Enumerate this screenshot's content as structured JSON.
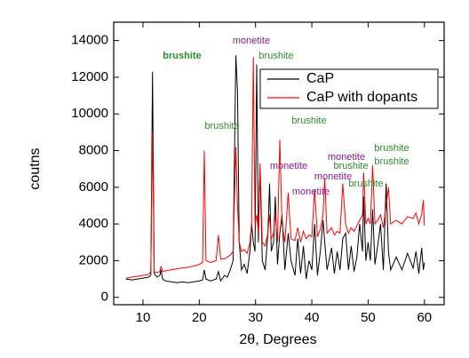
{
  "chart_data": {
    "type": "line",
    "xlabel": "2θ, Degrees",
    "ylabel": "coutns",
    "xlim": [
      4.8,
      63.5
    ],
    "ylim": [
      -400,
      15000
    ],
    "xticks": [
      10,
      20,
      30,
      40,
      50,
      60
    ],
    "yticks": [
      0,
      2000,
      4000,
      6000,
      8000,
      10000,
      12000,
      14000
    ],
    "legend": "upper right",
    "x": [
      7,
      8,
      9,
      10,
      11,
      11.4,
      11.7,
      12,
      12.5,
      13,
      13.2,
      13.5,
      14,
      15,
      16,
      17,
      18,
      19,
      20,
      20.6,
      20.9,
      21.2,
      22,
      23,
      23.4,
      23.8,
      24.5,
      25,
      25.5,
      26,
      26.5,
      26.8,
      27.1,
      27.5,
      28,
      28.5,
      29,
      29.3,
      29.6,
      29.9,
      30.2,
      30.5,
      30.8,
      31.2,
      31.7,
      32.2,
      32.5,
      32.8,
      33.2,
      33.5,
      33.9,
      34.3,
      34.7,
      35.2,
      35.8,
      36.3,
      37,
      37.5,
      38,
      38.5,
      39,
      39.5,
      40,
      40.5,
      41,
      41.5,
      42,
      42.3,
      42.7,
      43.5,
      44,
      44.5,
      45,
      45.5,
      46,
      46.5,
      47,
      47.5,
      48,
      48.5,
      49,
      49.2,
      49.6,
      50,
      50.4,
      50.8,
      51.2,
      51.7,
      52.2,
      52.7,
      53.2,
      53.6,
      54,
      55,
      56,
      57,
      58,
      58.5,
      59,
      59.5,
      59.8,
      60
    ],
    "series": [
      {
        "name": "CaP",
        "color": "#000000",
        "values": [
          1000,
          950,
          1000,
          1050,
          1100,
          1200,
          12300,
          1300,
          1100,
          1200,
          1500,
          1000,
          900,
          850,
          800,
          850,
          800,
          850,
          900,
          950,
          1500,
          1000,
          900,
          1000,
          1400,
          900,
          1200,
          1100,
          1500,
          2000,
          13200,
          11200,
          3000,
          1500,
          1800,
          1300,
          2500,
          4000,
          3000,
          2500,
          12700,
          3000,
          7000,
          2000,
          1500,
          3500,
          6200,
          2500,
          3000,
          5500,
          1800,
          3500,
          4500,
          1500,
          3500,
          2000,
          1200,
          3200,
          1300,
          2800,
          1000,
          2000,
          1500,
          4000,
          1200,
          2500,
          4200,
          3000,
          1500,
          2700,
          1300,
          2500,
          1500,
          3200,
          3500,
          1500,
          2800,
          1400,
          2200,
          4000,
          2500,
          5500,
          2000,
          3000,
          2000,
          4800,
          1800,
          2800,
          4000,
          1500,
          6200,
          2500,
          1500,
          2200,
          1500,
          2400,
          1600,
          2500,
          1300,
          2700,
          1500,
          1900
        ]
      },
      {
        "name": "CaP with dopants",
        "color": "#ff0000",
        "values": [
          1050,
          1100,
          1150,
          1200,
          1250,
          1400,
          9000,
          1400,
          1350,
          1400,
          1700,
          1400,
          1450,
          1500,
          1550,
          1600,
          1650,
          1700,
          1800,
          1900,
          8000,
          2000,
          1900,
          2000,
          3400,
          2100,
          2100,
          2200,
          2300,
          2500,
          8200,
          5000,
          3000,
          2500,
          2600,
          2400,
          3000,
          4000,
          13100,
          4000,
          4500,
          3500,
          7300,
          3000,
          2800,
          3500,
          4500,
          3200,
          3500,
          4500,
          3000,
          8600,
          4000,
          3000,
          5700,
          3200,
          3100,
          3800,
          3000,
          3600,
          3200,
          3400,
          3300,
          5900,
          3300,
          3700,
          4500,
          6500,
          3500,
          3800,
          3400,
          3600,
          3500,
          6200,
          4000,
          3500,
          3800,
          3600,
          3900,
          4200,
          4500,
          6800,
          4000,
          4300,
          4000,
          7200,
          4000,
          4200,
          4500,
          3800,
          5000,
          6000,
          4000,
          4200,
          4000,
          4400,
          4300,
          4600,
          4000,
          4500,
          5300,
          3900
        ]
      }
    ],
    "annotations": [
      {
        "text": "brushite",
        "color": "#2e8b2e"
      },
      {
        "text": "monetite",
        "color": "#8b1a8b"
      },
      {
        "text": "brushite",
        "color": "#2e8b2e"
      },
      {
        "text": "brushite",
        "color": "#2e8b2e"
      },
      {
        "text": "brushite",
        "color": "#2e8b2e"
      },
      {
        "text": "monetite",
        "color": "#8b1a8b"
      },
      {
        "text": "monetite",
        "color": "#8b1a8b"
      },
      {
        "text": "monetite",
        "color": "#8b1a8b"
      },
      {
        "text": "brushite",
        "color": "#2e8b2e"
      },
      {
        "text": "monetite",
        "color": "#8b1a8b"
      },
      {
        "text": "brushite",
        "color": "#2e8b2e"
      },
      {
        "text": "brushite",
        "color": "#2e8b2e"
      },
      {
        "text": "brushite",
        "color": "#2e8b2e"
      }
    ]
  }
}
